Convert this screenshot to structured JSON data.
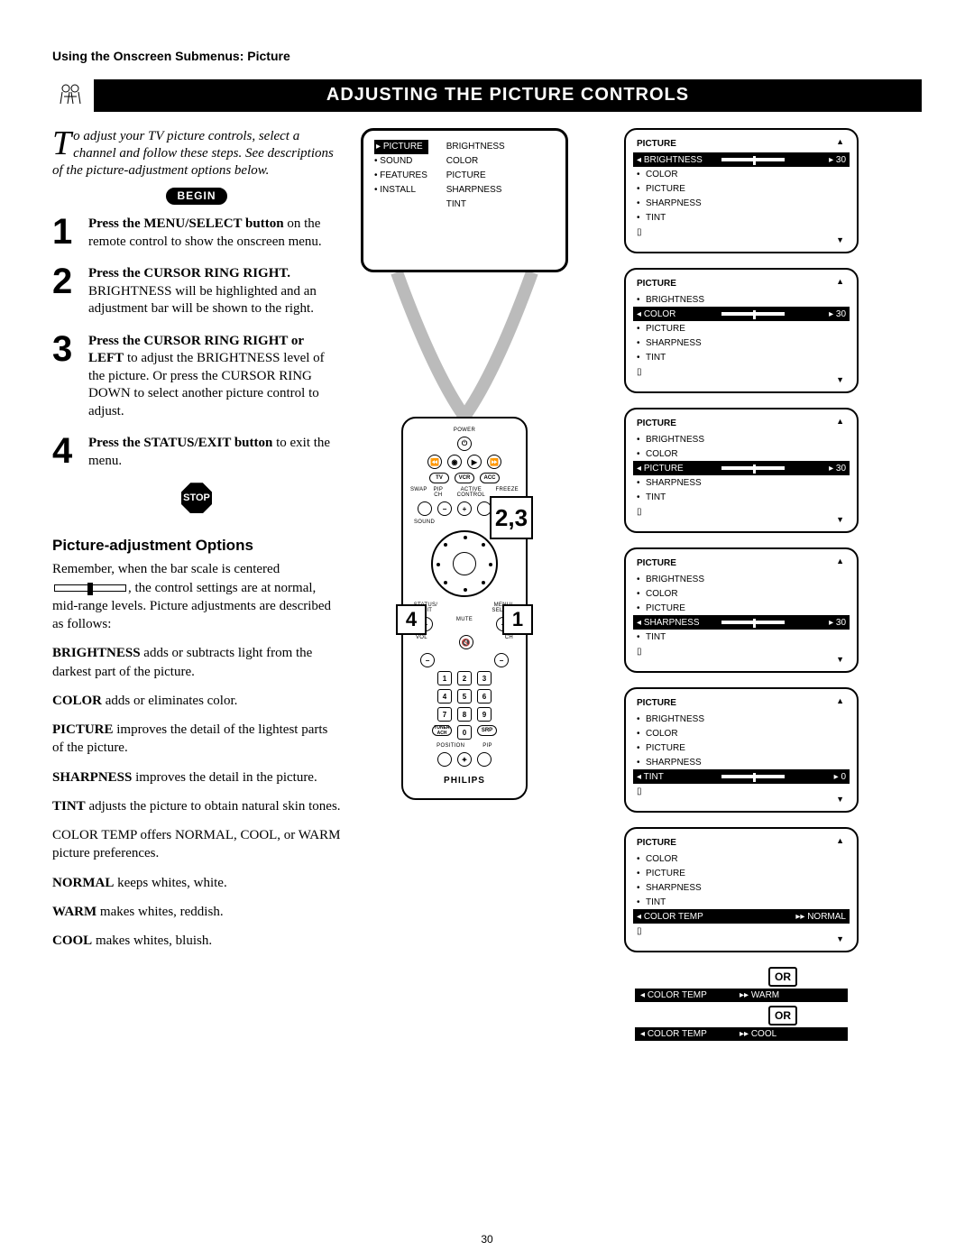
{
  "breadcrumb": "Using the Onscreen Submenus: Picture",
  "title": "ADJUSTING THE PICTURE CONTROLS",
  "intro_first": "T",
  "intro_rest": "o adjust your TV picture controls, select a channel and follow these steps. See descriptions of the picture-adjustment options below.",
  "begin": "BEGIN",
  "stop": "STOP",
  "steps": [
    {
      "n": "1",
      "bold": "Press the MENU/SELECT button",
      "tail": " on the remote control to show the onscreen menu."
    },
    {
      "n": "2",
      "bold": "Press the CURSOR RING RIGHT.",
      "tail": " BRIGHTNESS will be highlighted and an adjustment bar will be shown to the right."
    },
    {
      "n": "3",
      "bold": "Press the CURSOR RING RIGHT or LEFT",
      "tail": " to adjust the BRIGHTNESS level of the picture. Or press the CURSOR RING DOWN to select another picture control to adjust."
    },
    {
      "n": "4",
      "bold": "Press the STATUS/EXIT button",
      "tail": " to exit the menu."
    }
  ],
  "options_heading": "Picture-adjustment Options",
  "options_intro_a": "Remember, when the bar scale is centered ",
  "options_intro_b": ", the control settings are at normal, mid-range levels. Picture adjustments are described as follows:",
  "options": [
    {
      "b": "BRIGHTNESS",
      "t": " adds or subtracts light from the darkest part of the picture."
    },
    {
      "b": "COLOR",
      "t": " adds or eliminates color."
    },
    {
      "b": "PICTURE",
      "t": " improves the detail of the lightest parts of the picture."
    },
    {
      "b": "SHARPNESS",
      "t": " improves the detail in the picture."
    },
    {
      "b": "TINT",
      "t": " adjusts the picture to obtain natural skin tones."
    }
  ],
  "colortemp_line": "COLOR TEMP offers NORMAL, COOL, or WARM picture preferences.",
  "modes": [
    {
      "b": "NORMAL",
      "t": " keeps whites, white."
    },
    {
      "b": "WARM",
      "t": " makes whites, reddish."
    },
    {
      "b": "COOL",
      "t": " makes whites, bluish."
    }
  ],
  "tv_menu_left": [
    "PICTURE",
    "SOUND",
    "FEATURES",
    "INSTALL"
  ],
  "tv_menu_right": [
    "BRIGHTNESS",
    "COLOR",
    "PICTURE",
    "SHARPNESS",
    "TINT"
  ],
  "remote": {
    "brand": "PHILIPS",
    "power": "POWER",
    "tv": "TV",
    "vcr": "VCR",
    "acc": "ACC",
    "swap": "SWAP",
    "pipch": "PIP CH",
    "active": "ACTIVE CONTROL",
    "freeze": "FREEZE",
    "sound": "SOUND",
    "pict": "PICT",
    "status": "STATUS/ EXIT",
    "menu": "MENU/ SELECT",
    "mute": "MUTE",
    "vol": "VOL",
    "ch": "CH",
    "tuner": "TUNER ACH",
    "srp": "SRP",
    "position": "POSITION",
    "pip": "PIP"
  },
  "callouts": {
    "c23": "2,3",
    "c1": "1",
    "c4": "4"
  },
  "osd_title": "PICTURE",
  "osd_items": [
    "BRIGHTNESS",
    "COLOR",
    "PICTURE",
    "SHARPNESS",
    "TINT"
  ],
  "osd_panels": [
    {
      "sel": "BRIGHTNESS",
      "val": "30",
      "knob": 0.5
    },
    {
      "sel": "COLOR",
      "val": "30",
      "knob": 0.5
    },
    {
      "sel": "PICTURE",
      "val": "30",
      "knob": 0.5
    },
    {
      "sel": "SHARPNESS",
      "val": "30",
      "knob": 0.5
    },
    {
      "sel": "TINT",
      "val": "0",
      "knob": 0.5
    }
  ],
  "osd6_items": [
    "COLOR",
    "PICTURE",
    "SHARPNESS",
    "TINT",
    "COLOR TEMP"
  ],
  "osd6_sel": "COLOR TEMP",
  "osd6_val": "NORMAL",
  "or": "OR",
  "strips": [
    {
      "l": "COLOR TEMP",
      "r": "WARM"
    },
    {
      "l": "COLOR TEMP",
      "r": "COOL"
    }
  ],
  "page_num": "30"
}
